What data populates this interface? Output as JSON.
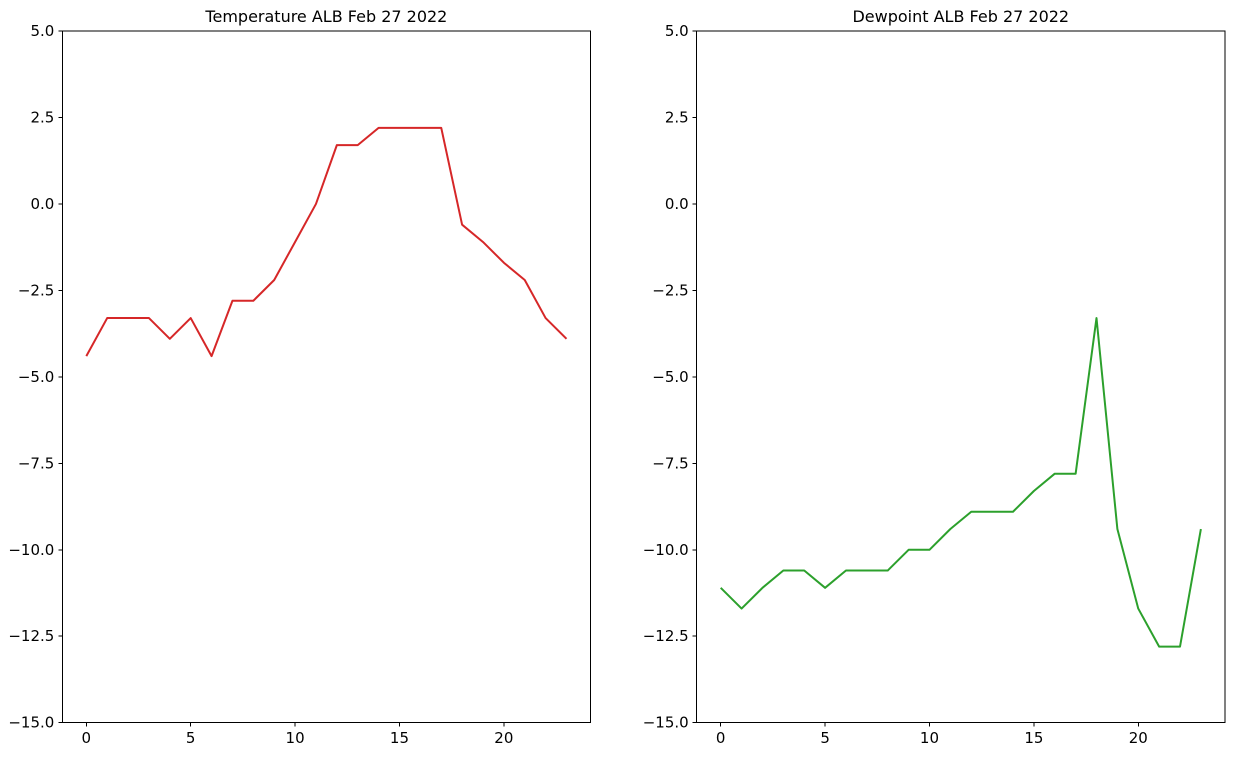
{
  "figure": {
    "background_color": "#ffffff",
    "axes_color": "#000000"
  },
  "chart_data": [
    {
      "type": "line",
      "title": "Temperature ALB Feb 27 2022",
      "series": [
        {
          "name": "temperature_deg_c",
          "color": "#d62728",
          "values": [
            -4.4,
            -3.3,
            -3.3,
            -3.3,
            -3.9,
            -3.3,
            -4.4,
            -2.8,
            -2.8,
            -2.2,
            -1.1,
            0.0,
            1.7,
            1.7,
            2.2,
            2.2,
            2.2,
            2.2,
            -0.6,
            -1.1,
            -1.7,
            -2.2,
            -3.3,
            -3.9
          ]
        }
      ],
      "x": [
        0,
        1,
        2,
        3,
        4,
        5,
        6,
        7,
        8,
        9,
        10,
        11,
        12,
        13,
        14,
        15,
        16,
        17,
        18,
        19,
        20,
        21,
        22,
        23
      ],
      "xlabel": "",
      "ylabel": "",
      "xlim": [
        -1.15,
        24.15
      ],
      "ylim": [
        -15.0,
        5.0
      ],
      "x_ticks": [
        0,
        5,
        10,
        15,
        20
      ],
      "x_tick_labels": [
        "0",
        "5",
        "10",
        "15",
        "20"
      ],
      "y_ticks": [
        5.0,
        2.5,
        0.0,
        -2.5,
        -5.0,
        -7.5,
        -10.0,
        -12.5,
        -15.0
      ],
      "y_tick_labels": [
        "5.0",
        "2.5",
        "0.0",
        "−2.5",
        "−5.0",
        "−7.5",
        "−10.0",
        "−12.5",
        "−15.0"
      ],
      "grid": false,
      "legend": "none"
    },
    {
      "type": "line",
      "title": "Dewpoint ALB Feb 27 2022",
      "series": [
        {
          "name": "dewpoint_deg_c",
          "color": "#2ca02c",
          "values": [
            -11.1,
            -11.7,
            -11.1,
            -10.6,
            -10.6,
            -11.1,
            -10.6,
            -10.6,
            -10.6,
            -10.0,
            -10.0,
            -9.4,
            -8.9,
            -8.9,
            -8.9,
            -8.3,
            -7.8,
            -7.8,
            -3.3,
            -9.4,
            -11.7,
            -12.8,
            -12.8,
            -9.4
          ]
        }
      ],
      "x": [
        0,
        1,
        2,
        3,
        4,
        5,
        6,
        7,
        8,
        9,
        10,
        11,
        12,
        13,
        14,
        15,
        16,
        17,
        18,
        19,
        20,
        21,
        22,
        23
      ],
      "xlabel": "",
      "ylabel": "",
      "xlim": [
        -1.15,
        24.15
      ],
      "ylim": [
        -15.0,
        5.0
      ],
      "x_ticks": [
        0,
        5,
        10,
        15,
        20
      ],
      "x_tick_labels": [
        "0",
        "5",
        "10",
        "15",
        "20"
      ],
      "y_ticks": [
        5.0,
        2.5,
        0.0,
        -2.5,
        -5.0,
        -7.5,
        -10.0,
        -12.5,
        -15.0
      ],
      "y_tick_labels": [
        "5.0",
        "2.5",
        "0.0",
        "−2.5",
        "−5.0",
        "−7.5",
        "−10.0",
        "−12.5",
        "−15.0"
      ],
      "grid": false,
      "legend": "none"
    }
  ]
}
